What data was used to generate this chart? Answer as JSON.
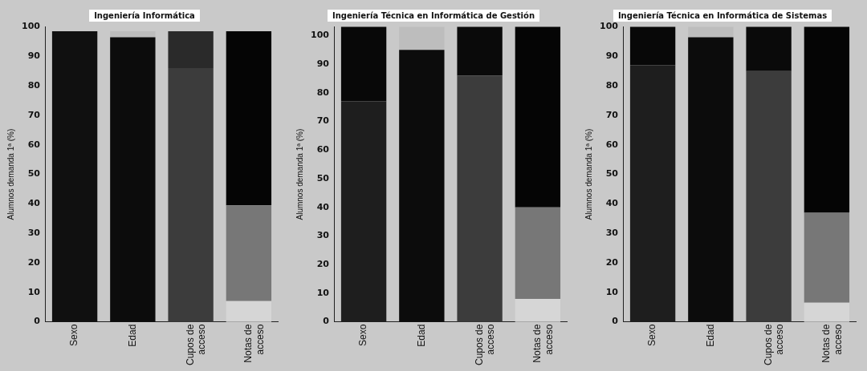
{
  "chart_data": [
    {
      "type": "bar",
      "title": "Ingeniería Informática",
      "ylabel": "Alumnos demanda 1ª (%)",
      "categories": [
        "Sexo",
        "Edad",
        "Cupos de acceso",
        "Notas de acceso"
      ],
      "stacked": true,
      "ylim": [
        0,
        100
      ],
      "yticks": [
        0,
        10,
        20,
        30,
        40,
        50,
        60,
        70,
        80,
        90,
        100
      ],
      "grid": false,
      "legend": false,
      "series": [
        {
          "colors": [
            "#101010",
            "#0c0c0c",
            "#3c3c3c",
            "#d6d6d6"
          ],
          "values": [
            98.5,
            96.5,
            86,
            7
          ]
        },
        {
          "colors": [
            "#101010",
            "#bdbdbd",
            "#2a2a2a",
            "#777777"
          ],
          "values": [
            null,
            2,
            12.5,
            32.5
          ]
        },
        {
          "colors": [
            "#050505",
            "#050505",
            "#050505",
            "#050505"
          ],
          "values": [
            null,
            null,
            null,
            59
          ]
        }
      ]
    },
    {
      "type": "bar",
      "title": "Ingeniería Técnica en Informática de Gestión",
      "ylabel": "Alumnos demanda 1ª (%)",
      "categories": [
        "Sexo",
        "Edad",
        "Cupos de acceso",
        "Notas de acceso"
      ],
      "stacked": true,
      "ylim": [
        0,
        103
      ],
      "yticks": [
        0,
        10,
        20,
        30,
        40,
        50,
        60,
        70,
        80,
        90,
        100
      ],
      "grid": false,
      "legend": false,
      "series": [
        {
          "colors": [
            "#1e1e1e",
            "#0c0c0c",
            "#3c3c3c",
            "#d6d6d6"
          ],
          "values": [
            77,
            95,
            86,
            8
          ]
        },
        {
          "colors": [
            "#080808",
            "#bdbdbd",
            "#0a0a0a",
            "#777777"
          ],
          "values": [
            26,
            8,
            17,
            32
          ]
        },
        {
          "colors": [
            "#050505",
            "#050505",
            "#050505",
            "#050505"
          ],
          "values": [
            null,
            null,
            null,
            63
          ]
        }
      ]
    },
    {
      "type": "bar",
      "title": "Ingeniería Técnica en Informática de Sistemas",
      "ylabel": "Alumnos demanda 1ª (%)",
      "categories": [
        "Sexo",
        "Edad",
        "Cupos de acceso",
        "Notas de acceso"
      ],
      "stacked": true,
      "ylim": [
        0,
        100
      ],
      "yticks": [
        0,
        10,
        20,
        30,
        40,
        50,
        60,
        70,
        80,
        90,
        100
      ],
      "grid": false,
      "legend": false,
      "series": [
        {
          "colors": [
            "#1e1e1e",
            "#0c0c0c",
            "#3c3c3c",
            "#d6d6d6"
          ],
          "values": [
            87,
            96.5,
            85,
            6.5
          ]
        },
        {
          "colors": [
            "#080808",
            "#bdbdbd",
            "#0a0a0a",
            "#777777"
          ],
          "values": [
            13,
            3.5,
            15,
            30.5
          ]
        },
        {
          "colors": [
            "#050505",
            "#050505",
            "#050505",
            "#050505"
          ],
          "values": [
            null,
            null,
            null,
            63
          ]
        }
      ]
    }
  ]
}
